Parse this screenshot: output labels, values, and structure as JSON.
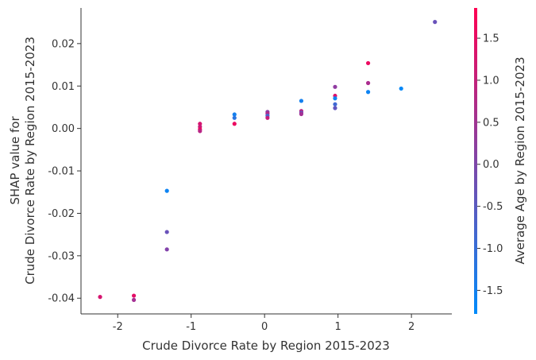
{
  "chart_data": {
    "type": "scatter",
    "xlabel": "Crude Divorce Rate by Region 2015-2023",
    "ylabel_line1": "SHAP value for",
    "ylabel_line2": "Crude Divorce Rate by Region 2015-2023",
    "colorbar_label": "Average Age by Region 2015-2023",
    "xlim": [
      -2.5,
      2.55
    ],
    "ylim": [
      -0.0437,
      0.0284
    ],
    "x_ticks": [
      -2,
      -1,
      0,
      1,
      2
    ],
    "x_tick_labels": [
      "-2",
      "-1",
      "0",
      "1",
      "2"
    ],
    "y_ticks": [
      -0.04,
      -0.03,
      -0.02,
      -0.01,
      0.0,
      0.01,
      0.02
    ],
    "y_tick_labels": [
      "-0.04",
      "-0.03",
      "-0.02",
      "-0.01",
      "0.00",
      "0.01",
      "0.02"
    ],
    "color_range": [
      -1.78,
      1.86
    ],
    "colorbar_ticks": [
      -1.5,
      -1.0,
      -0.5,
      0.0,
      0.5,
      1.0,
      1.5
    ],
    "colorbar_tick_labels": [
      "-1.5",
      "-1.0",
      "-0.5",
      "0.0",
      "0.5",
      "1.0",
      "1.5"
    ],
    "colormap": [
      "#008bfb",
      "#ff0052"
    ],
    "points": [
      {
        "x": -2.24,
        "y": -0.0397,
        "c": 1.3
      },
      {
        "x": -1.78,
        "y": -0.0394,
        "c": 1.5
      },
      {
        "x": -1.78,
        "y": -0.0404,
        "c": 0.6
      },
      {
        "x": -1.33,
        "y": -0.0147,
        "c": -1.6
      },
      {
        "x": -1.33,
        "y": -0.0244,
        "c": -0.3
      },
      {
        "x": -1.33,
        "y": -0.0285,
        "c": 0.1
      },
      {
        "x": -0.88,
        "y": 0.0011,
        "c": 1.3
      },
      {
        "x": -0.88,
        "y": 0.0004,
        "c": 1.1
      },
      {
        "x": -0.88,
        "y": -0.0002,
        "c": 1.6
      },
      {
        "x": -0.88,
        "y": -0.0006,
        "c": 0.9
      },
      {
        "x": -0.41,
        "y": 0.0033,
        "c": -1.5
      },
      {
        "x": -0.41,
        "y": 0.0025,
        "c": -1.2
      },
      {
        "x": -0.41,
        "y": 0.0011,
        "c": 1.6
      },
      {
        "x": 0.04,
        "y": 0.0039,
        "c": 0.2
      },
      {
        "x": 0.04,
        "y": 0.0035,
        "c": 0.8
      },
      {
        "x": 0.04,
        "y": 0.003,
        "c": -0.8
      },
      {
        "x": 0.04,
        "y": 0.0025,
        "c": 1.1
      },
      {
        "x": 0.5,
        "y": 0.0065,
        "c": -1.5
      },
      {
        "x": 0.5,
        "y": 0.0041,
        "c": 0.9
      },
      {
        "x": 0.5,
        "y": 0.0037,
        "c": -0.2
      },
      {
        "x": 0.5,
        "y": 0.0034,
        "c": 0.6
      },
      {
        "x": 0.96,
        "y": 0.0098,
        "c": 0.3
      },
      {
        "x": 0.96,
        "y": 0.0077,
        "c": 1.4
      },
      {
        "x": 0.96,
        "y": 0.0071,
        "c": -1.6
      },
      {
        "x": 0.96,
        "y": 0.0057,
        "c": -0.9
      },
      {
        "x": 0.96,
        "y": 0.0048,
        "c": -0.4
      },
      {
        "x": 1.41,
        "y": 0.0154,
        "c": 1.6
      },
      {
        "x": 1.41,
        "y": 0.0107,
        "c": 0.7
      },
      {
        "x": 1.41,
        "y": 0.0086,
        "c": -1.6
      },
      {
        "x": 1.86,
        "y": 0.0094,
        "c": -1.7
      },
      {
        "x": 2.32,
        "y": 0.0251,
        "c": -0.3
      }
    ]
  }
}
